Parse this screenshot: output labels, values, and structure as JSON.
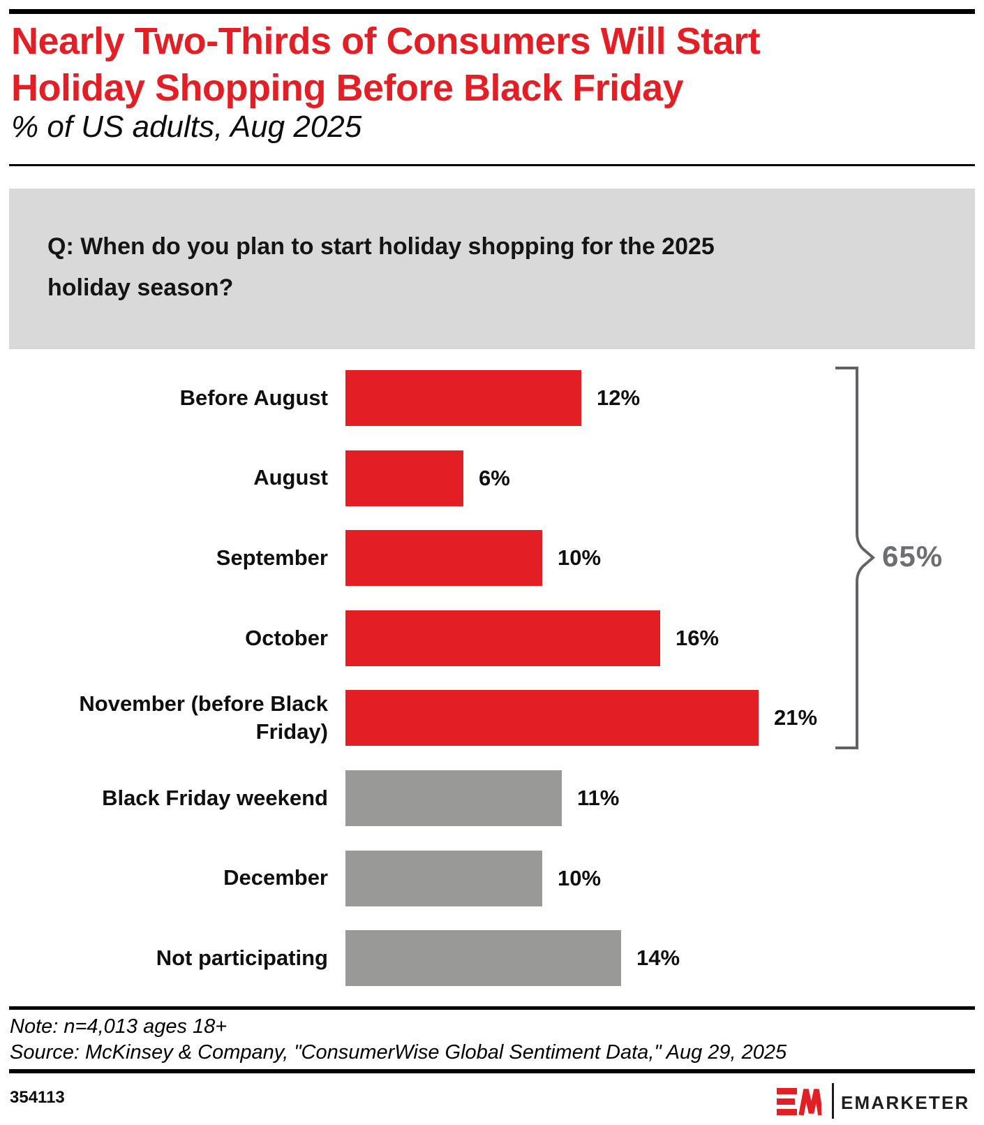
{
  "header": {
    "title_lines": [
      "Nearly Two-Thirds of Consumers Will Start",
      "Holiday Shopping Before Black Friday"
    ],
    "subtitle": "% of US adults, Aug 2025"
  },
  "question_box": {
    "lines": [
      "Q: When do you plan to start holiday shopping for the 2025",
      "holiday season?"
    ]
  },
  "chart_data": {
    "type": "bar",
    "orientation": "horizontal",
    "value_unit": "%",
    "categories": [
      "Before August",
      "August",
      "September",
      "October",
      "November (before Black Friday)",
      "Black Friday weekend",
      "December",
      "Not participating"
    ],
    "display_labels": [
      "Before August",
      "August",
      "September",
      "October",
      "November (before Black\nFriday)",
      "Black Friday weekend",
      "December",
      "Not participating"
    ],
    "values": [
      12,
      6,
      10,
      16,
      21,
      11,
      10,
      14
    ],
    "value_labels": [
      "12%",
      "6%",
      "10%",
      "16%",
      "21%",
      "11%",
      "10%",
      "14%"
    ],
    "bar_colors": [
      "#e31e25",
      "#e31e25",
      "#e31e25",
      "#e31e25",
      "#e31e25",
      "#999998",
      "#999998",
      "#999998"
    ],
    "xlim": [
      0,
      25
    ],
    "grid": false,
    "legend": false,
    "annotation": {
      "label": "65%",
      "covers_categories": [
        "Before August",
        "August",
        "September",
        "October",
        "November (before Black Friday)"
      ]
    }
  },
  "footer": {
    "note": "Note: n=4,013 ages 18+",
    "source": "Source: McKinsey & Company, \"ConsumerWise Global Sentiment Data,\" Aug 29, 2025",
    "chart_id": "354113",
    "brand_wordmark": "EMARKETER"
  },
  "colors": {
    "accent_red": "#e31e25",
    "bar_gray": "#999998",
    "question_box_bg": "#d9d9d9",
    "brace_gray": "#606266",
    "annotation_gray": "#6d6e71"
  }
}
